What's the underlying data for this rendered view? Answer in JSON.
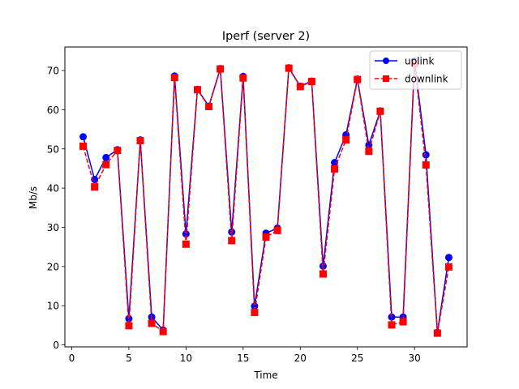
{
  "chart_data": {
    "type": "line",
    "title": "Iperf (server 2)",
    "xlabel": "Time",
    "ylabel": "Mb/s",
    "xlim": [
      -0.6,
      34.6
    ],
    "ylim": [
      -0.5,
      76
    ],
    "xticks": [
      0,
      5,
      10,
      15,
      20,
      25,
      30
    ],
    "yticks": [
      0,
      10,
      20,
      30,
      40,
      50,
      60,
      70
    ],
    "grid": false,
    "legend_position": "top-right",
    "x": [
      1,
      2,
      3,
      4,
      5,
      6,
      7,
      8,
      9,
      10,
      11,
      12,
      13,
      14,
      15,
      16,
      17,
      18,
      19,
      20,
      21,
      22,
      23,
      24,
      25,
      26,
      27,
      28,
      29,
      30,
      31,
      32,
      33
    ],
    "series": [
      {
        "name": "uplink",
        "color": "#0000ff",
        "marker": "circle",
        "line": "solid",
        "values": [
          53.1,
          42.2,
          47.8,
          49.8,
          6.7,
          52.3,
          7.1,
          3.8,
          68.6,
          28.3,
          65.2,
          60.9,
          70.5,
          28.8,
          68.5,
          9.9,
          28.5,
          29.8,
          70.7,
          66.0,
          67.3,
          20.1,
          46.5,
          53.6,
          67.8,
          51.0,
          59.7,
          7.1,
          7.1,
          72.4,
          48.5,
          3.2,
          22.3
        ]
      },
      {
        "name": "downlink",
        "color": "#ff0000",
        "marker": "square",
        "line": "dashed",
        "values": [
          50.7,
          40.3,
          46.0,
          49.6,
          4.9,
          52.1,
          5.5,
          3.4,
          68.2,
          25.7,
          65.1,
          60.8,
          70.4,
          26.6,
          68.1,
          8.3,
          27.5,
          29.2,
          70.6,
          65.9,
          67.2,
          18.1,
          44.9,
          52.3,
          67.7,
          49.4,
          59.6,
          5.1,
          5.9,
          71.7,
          45.9,
          3.0,
          19.9
        ]
      }
    ]
  }
}
